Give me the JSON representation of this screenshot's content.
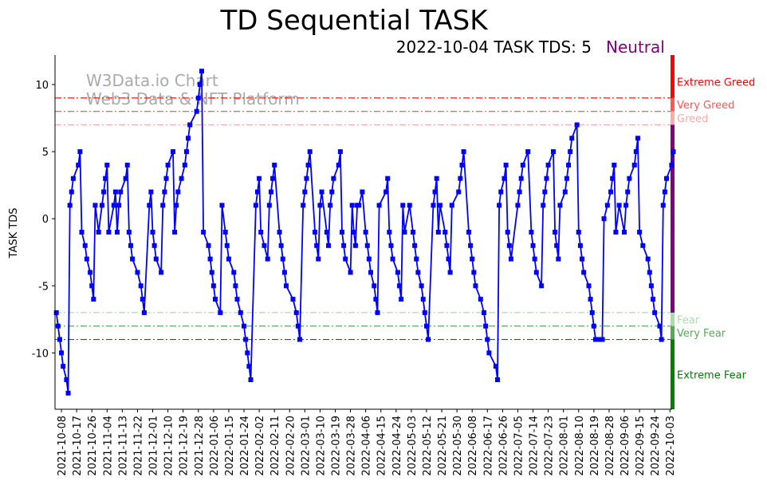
{
  "chart_data": {
    "type": "line",
    "title": "TD Sequential TASK",
    "subtitle": "2022-10-04 TASK TDS: 5",
    "status": "Neutral",
    "watermark": [
      "W3Data.io Chart",
      "Web3 Data & NFT Platform"
    ],
    "ylabel": "TASK TDS",
    "xlabel": "",
    "x_origin_date": "2021-10-08",
    "x_unit": "days since 2021-10-08",
    "xlim": [
      -3.8,
      361.3
    ],
    "ylim": [
      -14.2,
      12.2
    ],
    "yticks": [
      10,
      5,
      0,
      -5,
      -10
    ],
    "xtick_labels": [
      "2021-10-08",
      "2021-10-17",
      "2021-10-26",
      "2021-11-04",
      "2021-11-13",
      "2021-11-22",
      "2021-12-01",
      "2021-12-10",
      "2021-12-19",
      "2021-12-28",
      "2022-01-06",
      "2022-01-15",
      "2022-01-24",
      "2022-02-02",
      "2022-02-11",
      "2022-02-20",
      "2022-03-01",
      "2022-03-10",
      "2022-03-19",
      "2022-03-28",
      "2022-04-06",
      "2022-04-15",
      "2022-04-24",
      "2022-05-03",
      "2022-05-12",
      "2022-05-21",
      "2022-05-30",
      "2022-06-08",
      "2022-06-17",
      "2022-06-26",
      "2022-07-05",
      "2022-07-14",
      "2022-07-23",
      "2022-08-01",
      "2022-08-10",
      "2022-08-19",
      "2022-08-28",
      "2022-09-06",
      "2022-09-15",
      "2022-09-24",
      "2022-10-03"
    ],
    "xtick_step_days": 9,
    "series": [
      {
        "name": "TASK TDS",
        "color": "#0000ff",
        "points": [
          [
            -3,
            -7
          ],
          [
            -2,
            -8
          ],
          [
            -1,
            -9
          ],
          [
            0,
            -10
          ],
          [
            1,
            -11
          ],
          [
            3,
            -12
          ],
          [
            4,
            -13
          ],
          [
            5,
            1
          ],
          [
            6,
            2
          ],
          [
            7,
            3
          ],
          [
            10,
            4
          ],
          [
            11,
            5
          ],
          [
            12,
            -1
          ],
          [
            14,
            -2
          ],
          [
            15,
            -3
          ],
          [
            17,
            -4
          ],
          [
            18,
            -5
          ],
          [
            19,
            -6
          ],
          [
            20,
            1
          ],
          [
            22,
            -1
          ],
          [
            24,
            1
          ],
          [
            25,
            2
          ],
          [
            26,
            3
          ],
          [
            27,
            4
          ],
          [
            28,
            -1
          ],
          [
            31,
            1
          ],
          [
            32,
            2
          ],
          [
            33,
            -1
          ],
          [
            34,
            1
          ],
          [
            35,
            2
          ],
          [
            38,
            3
          ],
          [
            39,
            4
          ],
          [
            40,
            -1
          ],
          [
            41,
            -2
          ],
          [
            42,
            -3
          ],
          [
            45,
            -4
          ],
          [
            47,
            -5
          ],
          [
            48,
            -6
          ],
          [
            49,
            -7
          ],
          [
            52,
            1
          ],
          [
            53,
            2
          ],
          [
            54,
            -1
          ],
          [
            55,
            -2
          ],
          [
            56,
            -3
          ],
          [
            59,
            -4
          ],
          [
            60,
            1
          ],
          [
            61,
            2
          ],
          [
            62,
            3
          ],
          [
            63,
            4
          ],
          [
            66,
            5
          ],
          [
            67,
            -1
          ],
          [
            68,
            1
          ],
          [
            69,
            2
          ],
          [
            71,
            3
          ],
          [
            73,
            4
          ],
          [
            74,
            5
          ],
          [
            75,
            6
          ],
          [
            76,
            7
          ],
          [
            80,
            8
          ],
          [
            81,
            9
          ],
          [
            82,
            10
          ],
          [
            83,
            11
          ],
          [
            84,
            -1
          ],
          [
            87,
            -2
          ],
          [
            88,
            -3
          ],
          [
            89,
            -4
          ],
          [
            90,
            -5
          ],
          [
            91,
            -6
          ],
          [
            94,
            -7
          ],
          [
            95,
            1
          ],
          [
            97,
            -1
          ],
          [
            98,
            -2
          ],
          [
            99,
            -3
          ],
          [
            102,
            -4
          ],
          [
            103,
            -5
          ],
          [
            104,
            -6
          ],
          [
            106,
            -7
          ],
          [
            108,
            -8
          ],
          [
            109,
            -9
          ],
          [
            110,
            -10
          ],
          [
            111,
            -11
          ],
          [
            112,
            -12
          ],
          [
            115,
            1
          ],
          [
            116,
            2
          ],
          [
            117,
            3
          ],
          [
            118,
            -1
          ],
          [
            120,
            -2
          ],
          [
            122,
            -3
          ],
          [
            123,
            1
          ],
          [
            124,
            2
          ],
          [
            125,
            3
          ],
          [
            126,
            4
          ],
          [
            129,
            -1
          ],
          [
            130,
            -2
          ],
          [
            131,
            -3
          ],
          [
            132,
            -4
          ],
          [
            133,
            -5
          ],
          [
            137,
            -6
          ],
          [
            139,
            -7
          ],
          [
            140,
            -8
          ],
          [
            141,
            -9
          ],
          [
            143,
            1
          ],
          [
            144,
            2
          ],
          [
            145,
            3
          ],
          [
            146,
            4
          ],
          [
            147,
            5
          ],
          [
            150,
            -1
          ],
          [
            151,
            -2
          ],
          [
            152,
            -3
          ],
          [
            153,
            1
          ],
          [
            154,
            2
          ],
          [
            157,
            -1
          ],
          [
            158,
            -2
          ],
          [
            159,
            1
          ],
          [
            160,
            2
          ],
          [
            161,
            3
          ],
          [
            164,
            4
          ],
          [
            165,
            5
          ],
          [
            166,
            -1
          ],
          [
            167,
            -2
          ],
          [
            168,
            -3
          ],
          [
            171,
            -4
          ],
          [
            172,
            1
          ],
          [
            173,
            -1
          ],
          [
            174,
            -2
          ],
          [
            175,
            1
          ],
          [
            176,
            1
          ],
          [
            178,
            2
          ],
          [
            180,
            -1
          ],
          [
            181,
            -2
          ],
          [
            182,
            -3
          ],
          [
            183,
            -4
          ],
          [
            185,
            -5
          ],
          [
            186,
            -6
          ],
          [
            187,
            -7
          ],
          [
            188,
            1
          ],
          [
            192,
            2
          ],
          [
            193,
            3
          ],
          [
            194,
            -1
          ],
          [
            195,
            -2
          ],
          [
            196,
            -3
          ],
          [
            199,
            -4
          ],
          [
            200,
            -5
          ],
          [
            201,
            -6
          ],
          [
            202,
            1
          ],
          [
            203,
            -1
          ],
          [
            206,
            1
          ],
          [
            208,
            -1
          ],
          [
            209,
            -2
          ],
          [
            210,
            -3
          ],
          [
            211,
            -4
          ],
          [
            213,
            -5
          ],
          [
            214,
            -6
          ],
          [
            215,
            -7
          ],
          [
            216,
            -8
          ],
          [
            217,
            -9
          ],
          [
            220,
            1
          ],
          [
            221,
            2
          ],
          [
            222,
            3
          ],
          [
            223,
            -1
          ],
          [
            224,
            1
          ],
          [
            227,
            -1
          ],
          [
            228,
            -2
          ],
          [
            229,
            -3
          ],
          [
            230,
            -4
          ],
          [
            231,
            1
          ],
          [
            235,
            2
          ],
          [
            236,
            3
          ],
          [
            237,
            4
          ],
          [
            238,
            5
          ],
          [
            241,
            -1
          ],
          [
            242,
            -2
          ],
          [
            243,
            -3
          ],
          [
            244,
            -4
          ],
          [
            245,
            -5
          ],
          [
            248,
            -6
          ],
          [
            250,
            -7
          ],
          [
            251,
            -8
          ],
          [
            252,
            -9
          ],
          [
            253,
            -10
          ],
          [
            257,
            -11
          ],
          [
            258,
            -12
          ],
          [
            259,
            1
          ],
          [
            260,
            2
          ],
          [
            262,
            3
          ],
          [
            263,
            4
          ],
          [
            264,
            -1
          ],
          [
            265,
            -2
          ],
          [
            266,
            -3
          ],
          [
            270,
            1
          ],
          [
            271,
            2
          ],
          [
            272,
            3
          ],
          [
            273,
            4
          ],
          [
            276,
            5
          ],
          [
            278,
            -1
          ],
          [
            279,
            -2
          ],
          [
            280,
            -3
          ],
          [
            281,
            -4
          ],
          [
            284,
            -5
          ],
          [
            285,
            1
          ],
          [
            286,
            2
          ],
          [
            287,
            3
          ],
          [
            288,
            4
          ],
          [
            291,
            5
          ],
          [
            292,
            -1
          ],
          [
            293,
            -2
          ],
          [
            294,
            -3
          ],
          [
            295,
            1
          ],
          [
            298,
            2
          ],
          [
            299,
            3
          ],
          [
            300,
            4
          ],
          [
            301,
            5
          ],
          [
            302,
            6
          ],
          [
            305,
            7
          ],
          [
            306,
            -1
          ],
          [
            307,
            -2
          ],
          [
            308,
            -3
          ],
          [
            309,
            -4
          ],
          [
            312,
            -5
          ],
          [
            313,
            -6
          ],
          [
            314,
            -7
          ],
          [
            315,
            -8
          ],
          [
            316,
            -9
          ],
          [
            318,
            -9
          ],
          [
            320,
            -9
          ],
          [
            321,
            0
          ],
          [
            323,
            1
          ],
          [
            325,
            2
          ],
          [
            326,
            3
          ],
          [
            327,
            4
          ],
          [
            328,
            -1
          ],
          [
            330,
            1
          ],
          [
            333,
            -1
          ],
          [
            334,
            1
          ],
          [
            335,
            2
          ],
          [
            336,
            3
          ],
          [
            339,
            4
          ],
          [
            340,
            5
          ],
          [
            341,
            6
          ],
          [
            342,
            -1
          ],
          [
            344,
            -2
          ],
          [
            347,
            -3
          ],
          [
            348,
            -4
          ],
          [
            349,
            -5
          ],
          [
            350,
            -6
          ],
          [
            351,
            -7
          ],
          [
            354,
            -8
          ],
          [
            355,
            -9
          ],
          [
            356,
            1
          ],
          [
            357,
            2
          ],
          [
            358,
            3
          ],
          [
            361,
            4
          ],
          [
            362,
            5
          ]
        ]
      }
    ],
    "levels": [
      {
        "label": "Extreme Greed",
        "value": 9,
        "color": "#ff0000",
        "band": [
          9,
          12.2
        ]
      },
      {
        "label": "Very Greed",
        "value": 8,
        "color": "#ff5555",
        "band": [
          8,
          9
        ]
      },
      {
        "label": "Greed",
        "value": 7,
        "color": "#ffaaaa",
        "band": [
          7,
          8
        ]
      },
      {
        "label": "Fear",
        "value": -7,
        "color": "#aaddaa",
        "band": [
          -8,
          -7
        ]
      },
      {
        "label": "Very Fear",
        "value": -8,
        "color": "#55aa55",
        "band": [
          -9,
          -8
        ]
      },
      {
        "label": "Extreme Fear",
        "value": -9,
        "color": "#008000",
        "band": [
          -14.2,
          -9
        ]
      }
    ],
    "neutral_band": {
      "range": [
        -7,
        7
      ],
      "color": "#800080"
    },
    "grid": false,
    "legend": "none"
  }
}
